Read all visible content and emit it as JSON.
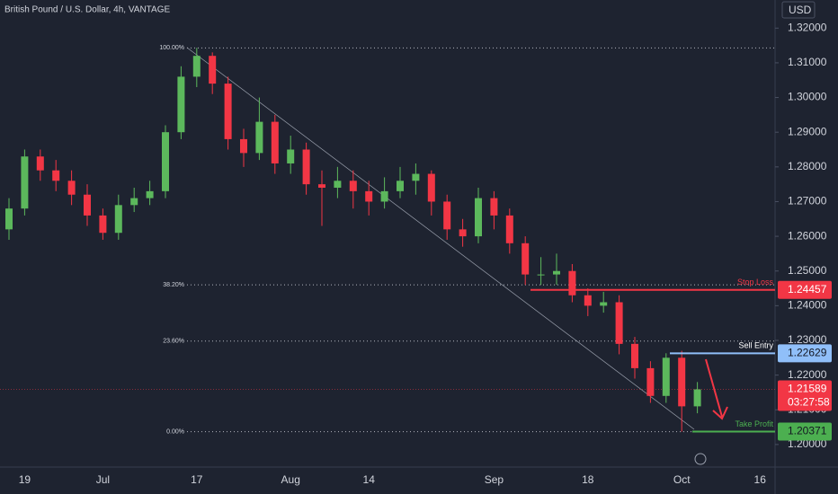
{
  "chart_data": {
    "type": "candlestick",
    "title": "British Pound / U.S. Dollar, 4h, VANTAGE",
    "currency": "USD",
    "categories": [
      null,
      "19",
      null,
      null,
      null,
      null,
      "Jul",
      null,
      null,
      null,
      null,
      null,
      "17",
      null,
      null,
      null,
      null,
      null,
      "Aug",
      null,
      null,
      null,
      null,
      "14",
      null,
      null,
      null,
      null,
      null,
      null,
      null,
      "Sep",
      null,
      null,
      null,
      null,
      null,
      "18",
      null,
      null,
      null,
      null,
      null,
      "Oct",
      null,
      null,
      null,
      null,
      "16"
    ],
    "open": [
      1.262,
      1.268,
      1.283,
      1.279,
      1.276,
      1.272,
      1.266,
      1.261,
      1.269,
      1.271,
      1.273,
      1.29,
      1.306,
      1.312,
      1.304,
      1.288,
      1.284,
      1.293,
      1.281,
      1.285,
      1.275,
      1.274,
      1.276,
      1.273,
      1.27,
      1.273,
      1.276,
      1.278,
      1.27,
      1.262,
      1.26,
      1.271,
      1.266,
      1.258,
      1.249,
      1.249,
      1.25,
      1.243,
      1.24,
      1.241,
      1.229,
      1.222,
      1.214,
      1.225,
      1.211,
      null,
      null,
      null,
      null
    ],
    "high": [
      1.271,
      1.285,
      1.285,
      1.282,
      1.279,
      1.275,
      1.268,
      1.272,
      1.274,
      1.276,
      1.292,
      1.309,
      1.3143,
      1.313,
      1.306,
      1.291,
      1.3,
      1.295,
      1.289,
      1.287,
      1.279,
      1.28,
      1.279,
      1.276,
      1.277,
      1.28,
      1.281,
      1.279,
      1.272,
      1.265,
      1.274,
      1.273,
      1.268,
      1.26,
      1.254,
      1.255,
      1.252,
      1.245,
      1.244,
      1.243,
      1.231,
      1.224,
      1.2263,
      1.227,
      1.218,
      null,
      null,
      null,
      null
    ],
    "low": [
      1.259,
      1.266,
      1.276,
      1.273,
      1.269,
      1.263,
      1.259,
      1.259,
      1.267,
      1.269,
      1.271,
      1.288,
      1.303,
      1.301,
      1.285,
      1.28,
      1.282,
      1.278,
      1.278,
      1.272,
      1.263,
      1.271,
      1.268,
      1.266,
      1.268,
      1.271,
      1.272,
      1.266,
      1.259,
      1.257,
      1.258,
      1.262,
      1.255,
      1.246,
      1.246,
      1.246,
      1.241,
      1.237,
      1.238,
      1.226,
      1.219,
      1.212,
      1.212,
      1.2037,
      1.209,
      null,
      null,
      null,
      null
    ],
    "close": [
      1.268,
      1.283,
      1.279,
      1.276,
      1.272,
      1.266,
      1.261,
      1.269,
      1.271,
      1.273,
      1.29,
      1.306,
      1.312,
      1.304,
      1.288,
      1.284,
      1.293,
      1.281,
      1.285,
      1.275,
      1.274,
      1.276,
      1.273,
      1.27,
      1.273,
      1.276,
      1.278,
      1.27,
      1.262,
      1.26,
      1.271,
      1.266,
      1.258,
      1.249,
      1.249,
      1.25,
      1.243,
      1.24,
      1.241,
      1.229,
      1.222,
      1.214,
      1.225,
      1.211,
      1.21589,
      null,
      null,
      null,
      null
    ],
    "up_color": "#5cb85c",
    "down_color": "#f23645",
    "ylim": [
      1.1935,
      1.3281
    ],
    "yticks": [
      {
        "value": 1.32,
        "label": "1.32000"
      },
      {
        "value": 1.31,
        "label": "1.31000"
      },
      {
        "value": 1.3,
        "label": "1.30000"
      },
      {
        "value": 1.29,
        "label": "1.29000"
      },
      {
        "value": 1.28,
        "label": "1.28000"
      },
      {
        "value": 1.27,
        "label": "1.27000"
      },
      {
        "value": 1.26,
        "label": "1.26000"
      },
      {
        "value": 1.25,
        "label": "1.25000"
      },
      {
        "value": 1.24,
        "label": "1.24000"
      },
      {
        "value": 1.23,
        "label": "1.23000"
      },
      {
        "value": 1.22,
        "label": "1.22000"
      },
      {
        "value": 1.21,
        "label": "1.21000"
      },
      {
        "value": 1.2,
        "label": "1.20000"
      }
    ],
    "fib_levels": [
      {
        "label": "100.00%",
        "price": 1.3143
      },
      {
        "label": "38.20%",
        "price": 1.246
      },
      {
        "label": "23.60%",
        "price": 1.2298
      },
      {
        "label": "0.00%",
        "price": 1.2037
      }
    ],
    "levels": [
      {
        "name": "Stop Loss",
        "price": 1.24457,
        "color": "#f23645",
        "text_color": "#ffffff"
      },
      {
        "name": "Sell Entry",
        "price": 1.22629,
        "color": "#90bff9",
        "text_color": "#131722"
      },
      {
        "name": "Take Profit",
        "price": 1.20371,
        "color": "#4caf50",
        "text_color": "#131722"
      }
    ],
    "last_price": 1.21589,
    "countdown": "03:27:58"
  }
}
